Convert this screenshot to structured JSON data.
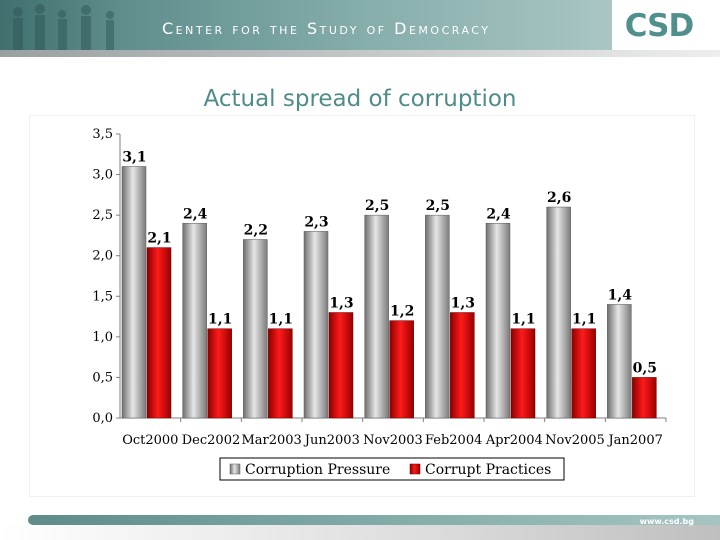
{
  "header": {
    "org_name": "Center for the Study of Democracy",
    "logo_text": "CSD",
    "footer_url": "www.csd.bg"
  },
  "colors": {
    "series_gray": "#a6a6a6",
    "series_red": "#e00000",
    "title": "#4f8c89"
  },
  "chart_data": {
    "type": "bar",
    "title": "Actual spread of corruption",
    "categories": [
      "Oct2000",
      "Dec2002",
      "Mar2003",
      "Jun2003",
      "Nov2003",
      "Feb2004",
      "Apr2004",
      "Nov2005",
      "Jan2007"
    ],
    "series": [
      {
        "name": "Corruption Pressure",
        "values": [
          3.1,
          2.4,
          2.2,
          2.3,
          2.5,
          2.5,
          2.4,
          2.6,
          1.4
        ],
        "labels": [
          "3,1",
          "2,4",
          "2,2",
          "2,3",
          "2,5",
          "2,5",
          "2,4",
          "2,6",
          "1,4"
        ]
      },
      {
        "name": "Corrupt Practices",
        "values": [
          2.1,
          1.1,
          1.1,
          1.3,
          1.2,
          1.3,
          1.1,
          1.1,
          0.5
        ],
        "labels": [
          "2,1",
          "1,1",
          "1,1",
          "1,3",
          "1,2",
          "1,3",
          "1,1",
          "1,1",
          "0,5"
        ]
      }
    ],
    "ylim": [
      0,
      3.5
    ],
    "yticks": [
      0,
      0.5,
      1.0,
      1.5,
      2.0,
      2.5,
      3.0,
      3.5
    ],
    "ytick_labels": [
      "0,0",
      "0,5",
      "1,0",
      "1,5",
      "2,0",
      "2,5",
      "3,0",
      "3,5"
    ],
    "legend_position": "bottom",
    "grid": false
  }
}
